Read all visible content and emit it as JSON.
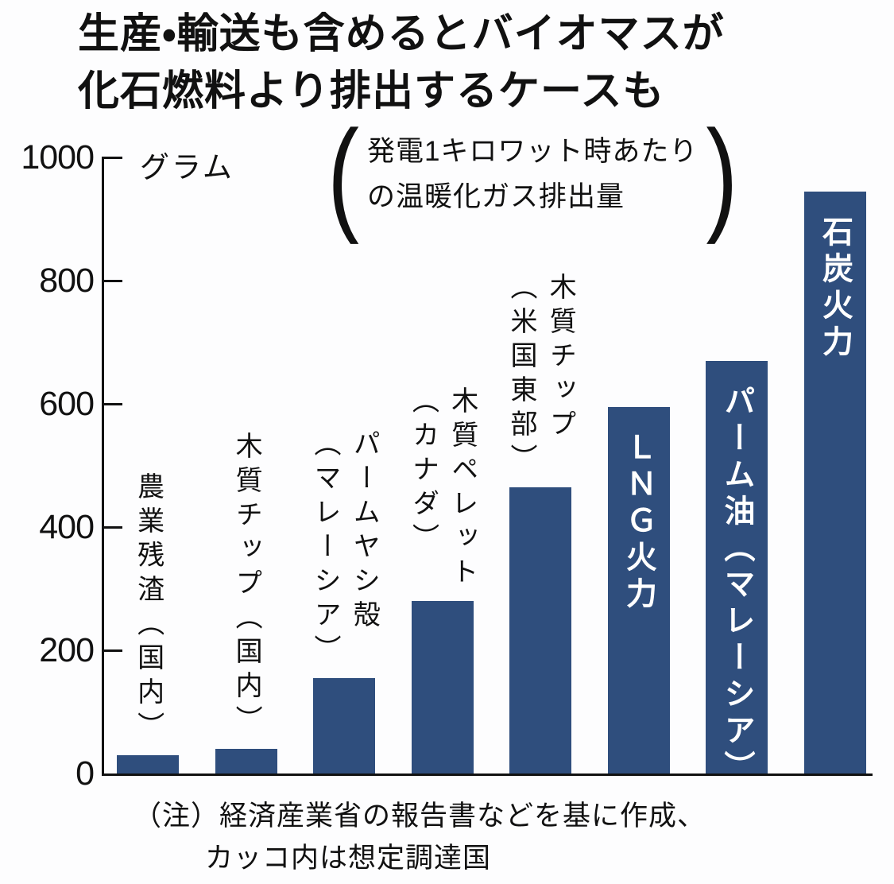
{
  "title": {
    "line1": "生産・輸送も含めるとバイオマスが",
    "line2": "化石燃料より排出するケースも"
  },
  "y_axis": {
    "unit_label": "グラム",
    "tick_values": [
      1000,
      800,
      600,
      400,
      200,
      0
    ]
  },
  "annotation": {
    "open_paren": "(",
    "line1": "発電1キロワット時あたり",
    "line2": "の温暖化ガス排出量",
    "close_paren": ")"
  },
  "footnote": {
    "line1": "（注）経済産業省の報告書などを基に作成、",
    "line2": "カッコ内は想定調達国"
  },
  "colors": {
    "bar_fill": "#2f4e7d",
    "axis_line": "#111111",
    "text": "#111111",
    "bar_label_inside": "#ffffff",
    "background": "#fdfdfe"
  },
  "chart_data": {
    "type": "bar",
    "title": "生産・輸送も含めるとバイオマスが化石燃料より排出するケースも",
    "subtitle": "発電1キロワット時あたりの温暖化ガス排出量",
    "xlabel": "",
    "ylabel": "グラム",
    "ylim": [
      0,
      1000
    ],
    "yticks": [
      0,
      200,
      400,
      600,
      800,
      1000
    ],
    "grid": false,
    "legend": false,
    "categories": [
      "農業残渣（国内）",
      "木質チップ（国内）",
      "パームヤシ殻（マレーシア）",
      "木質ペレット（カナダ）",
      "木質チップ（米国東部）",
      "ＬＮＧ火力",
      "パーム油（マレーシア）",
      "石炭火力"
    ],
    "values": [
      30,
      40,
      155,
      280,
      465,
      595,
      670,
      945
    ],
    "bar_labels": [
      {
        "text": "農業残渣（国内）",
        "placement": "above"
      },
      {
        "text": "木質チップ（国内）",
        "placement": "above"
      },
      {
        "text": "パームヤシ殻\n（マレーシア）",
        "placement": "above"
      },
      {
        "text": "木質ペレット\n（カナダ）",
        "placement": "above"
      },
      {
        "text": "木質チップ\n（米国東部）",
        "placement": "above"
      },
      {
        "text": "ＬＮＧ火力",
        "placement": "inside"
      },
      {
        "text": "パーム油（マレーシア）",
        "placement": "inside"
      },
      {
        "text": "石炭火力",
        "placement": "inside"
      }
    ]
  }
}
